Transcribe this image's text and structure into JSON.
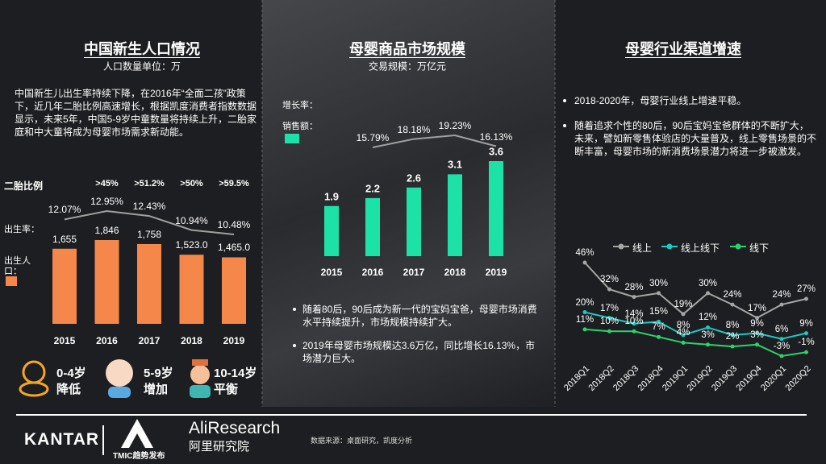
{
  "chart_data": [
    {
      "type": "bar",
      "title": "中国新生人口情况",
      "subtitle": "人口数量单位：万",
      "text": "中国新生儿出生率持续下降，在2016年“全面二孩”政策下，近几年二胎比例高速增长，根据凯度消费者指数数据显示，未来5年，中国5-9岁中童数量将持续上升，二胎家庭和中大童将成为母婴市场需求新动能。",
      "categories": [
        "2015",
        "2016",
        "2017",
        "2018",
        "2019"
      ],
      "second_child_ratio": {
        "label": "二胎比例",
        "values": [
          null,
          45,
          51.2,
          50,
          59.5
        ],
        "value_labels": [
          null,
          ">45%",
          ">51.2%",
          ">50%",
          ">59.5%"
        ]
      },
      "series": [
        {
          "name": "出生人口：",
          "color": "#f5874b",
          "values": [
            1655,
            1846,
            1758,
            1523.0,
            1465.0
          ],
          "value_labels": [
            "1,655",
            "1,846",
            "1,758",
            "1,523.0",
            "1,465.0"
          ]
        },
        {
          "name": "出生率：",
          "type": "line",
          "color": "#a0a0a0",
          "values": [
            12.07,
            12.95,
            12.43,
            10.94,
            10.48
          ],
          "value_labels": [
            "12.07%",
            "12.95%",
            "12.43%",
            "10.94%",
            "10.48%"
          ]
        }
      ],
      "age_groups": [
        {
          "age": "0-4岁",
          "trend": "降低"
        },
        {
          "age": "5-9岁",
          "trend": "增加"
        },
        {
          "age": "10-14岁",
          "trend": "平衡"
        }
      ]
    },
    {
      "type": "bar",
      "title": "母婴商品市场规模",
      "subtitle": "交易规模：万亿元",
      "categories": [
        "2015",
        "2016",
        "2017",
        "2018",
        "2019"
      ],
      "series": [
        {
          "name": "销售额：",
          "color": "#1de2a8",
          "values": [
            1.9,
            2.2,
            2.6,
            3.1,
            3.6
          ]
        },
        {
          "name": "增长率：",
          "type": "line",
          "color": "#a0a0a0",
          "values": [
            null,
            15.79,
            18.18,
            19.23,
            16.13
          ],
          "value_labels": [
            null,
            "15.79%",
            "18.18%",
            "19.23%",
            "16.13%"
          ]
        }
      ],
      "bullets": [
        "随着80后，90后成为新一代的宝妈宝爸，母婴市场消费水平持续提升，市场规模持续扩大。",
        "2019年母婴市场规模达3.6万亿，同比增长16.13%，市场潜力巨大。"
      ]
    },
    {
      "type": "line",
      "title": "母婴行业渠道增速",
      "legend": "top",
      "bullets": [
        "2018-2020年，母婴行业线上增速平稳。",
        "随着追求个性的80后，90后宝妈宝爸群体的不断扩大，未来，譬如新零售体验店的大量普及，线上零售场景的不断丰富，母婴市场的新消费场景潜力将进一步被激发。"
      ],
      "categories": [
        "2018Q1",
        "2018Q2",
        "2018Q3",
        "2018Q4",
        "2019Q1",
        "2019Q2",
        "2019Q3",
        "2019Q4",
        "2020Q1",
        "2020Q2"
      ],
      "series": [
        {
          "name": "线上",
          "color": "#a6a6a6",
          "values": [
            46,
            32,
            28,
            30,
            19,
            30,
            24,
            17,
            24,
            27
          ],
          "value_labels": [
            "46%",
            "32%",
            "28%",
            "30%",
            "19%",
            "30%",
            "24%",
            "17%",
            "24%",
            "27%"
          ]
        },
        {
          "name": "线上线下",
          "color": "#1fc9c0",
          "values": [
            20,
            17,
            14,
            15,
            8,
            12,
            8,
            9,
            6,
            9
          ],
          "value_labels": [
            "20%",
            "17%",
            "14%",
            "15%",
            "8%",
            "12%",
            "8%",
            "9%",
            "6%",
            "9%"
          ]
        },
        {
          "name": "线下",
          "color": "#2ad36b",
          "values": [
            11,
            10,
            10,
            7,
            4,
            3,
            2,
            3,
            -3,
            -1
          ],
          "value_labels": [
            "11%",
            "10%",
            "10%",
            "7%",
            "4%",
            "3%",
            "2%",
            "3%",
            "-3%",
            "-1%"
          ]
        }
      ]
    }
  ],
  "footer": {
    "kantar": "KANTAR",
    "tmic": "TMIC趋势发布",
    "aliresearch": "AliResearch",
    "ali_cn": "阿里研究院",
    "source": "数据来源：桌面研究，凯度分析"
  }
}
